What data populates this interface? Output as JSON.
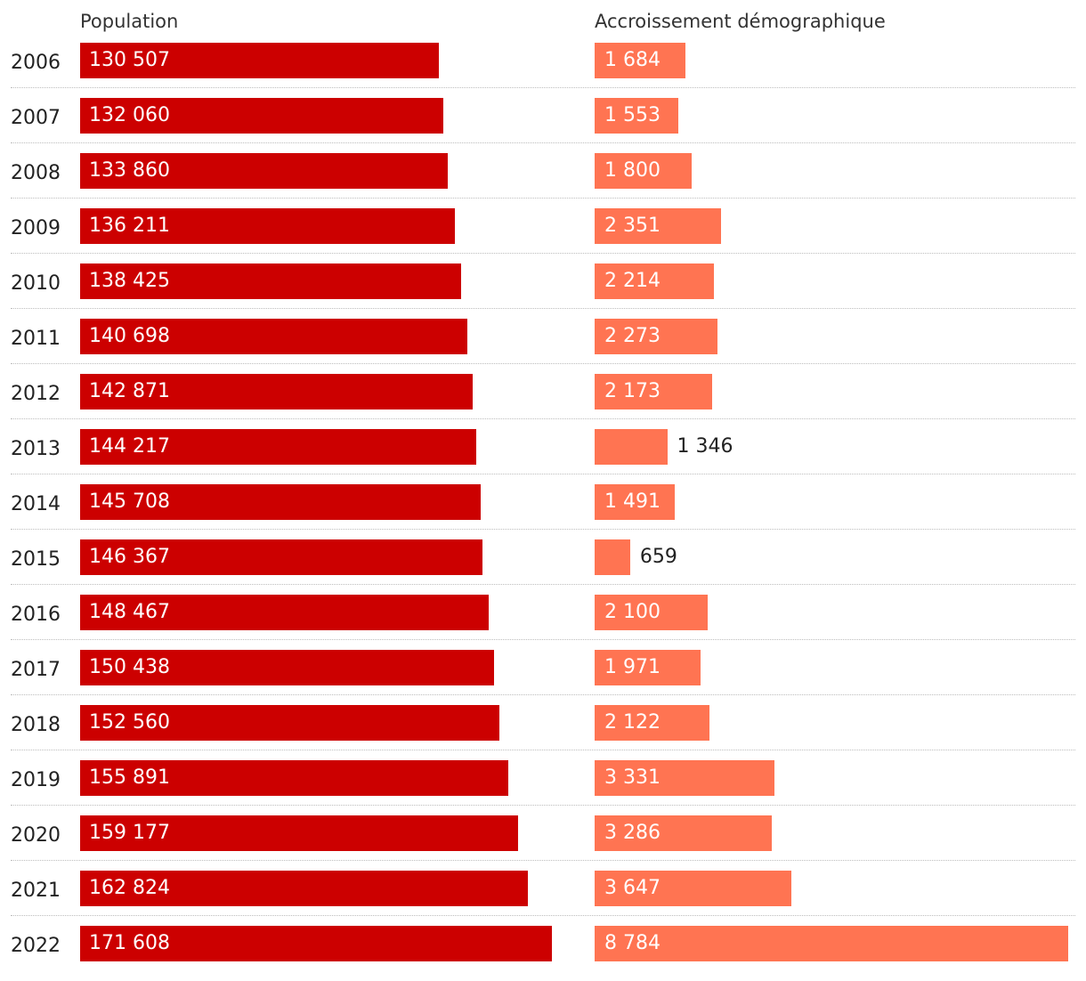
{
  "headers": {
    "population": "Population",
    "growth": "Accroissement démographique"
  },
  "colors": {
    "population_bar": "#cc0000",
    "growth_bar": "#ff7452",
    "separator": "#bdbdbd"
  },
  "chart_data": {
    "type": "bar",
    "orientation": "horizontal",
    "categories": [
      "2006",
      "2007",
      "2008",
      "2009",
      "2010",
      "2011",
      "2012",
      "2013",
      "2014",
      "2015",
      "2016",
      "2017",
      "2018",
      "2019",
      "2020",
      "2021",
      "2022"
    ],
    "series": [
      {
        "name": "Population",
        "values": [
          130507,
          132060,
          133860,
          136211,
          138425,
          140698,
          142871,
          144217,
          145708,
          146367,
          148467,
          150438,
          152560,
          155891,
          159177,
          162824,
          171608
        ],
        "labels": [
          "130 507",
          "132 060",
          "133 860",
          "136 211",
          "138 425",
          "140 698",
          "142 871",
          "144 217",
          "145 708",
          "146 367",
          "148 467",
          "150 438",
          "152 560",
          "155 891",
          "159 177",
          "162 824",
          "171 608"
        ]
      },
      {
        "name": "Accroissement démographique",
        "values": [
          1684,
          1553,
          1800,
          2351,
          2214,
          2273,
          2173,
          1346,
          1491,
          659,
          2100,
          1971,
          2122,
          3331,
          3286,
          3647,
          8784
        ],
        "labels": [
          "1 684",
          "1 553",
          "1 800",
          "2 351",
          "2 214",
          "2 273",
          "2 173",
          "1 346",
          "1 491",
          "659",
          "2 100",
          "1 971",
          "2 122",
          "3 331",
          "3 286",
          "3 647",
          "8 784"
        ]
      }
    ]
  }
}
